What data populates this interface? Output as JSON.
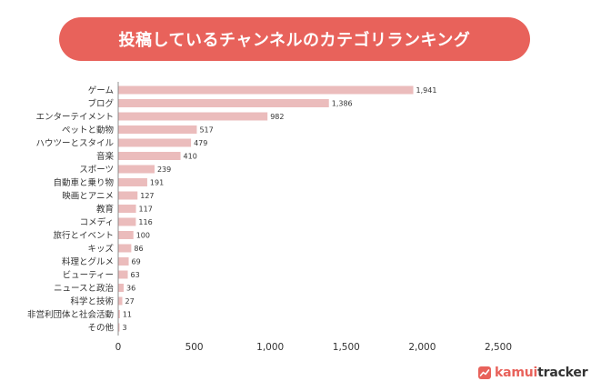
{
  "title": "投稿しているチャンネルのカテゴリランキング",
  "brand": {
    "part_a": "kamui",
    "part_b": "tracker",
    "color": "#e8625b"
  },
  "colors": {
    "bar": "#ebbcbc",
    "title_bg": "#e8625b",
    "text": "#333333",
    "axis": "#777777"
  },
  "chart_data": {
    "type": "bar",
    "orientation": "horizontal",
    "categories": [
      "ゲーム",
      "ブログ",
      "エンターテイメント",
      "ペットと動物",
      "ハウツーとスタイル",
      "音楽",
      "スポーツ",
      "自動車と乗り物",
      "映画とアニメ",
      "教育",
      "コメディ",
      "旅行とイベント",
      "キッズ",
      "料理とグルメ",
      "ビューティー",
      "ニュースと政治",
      "科学と技術",
      "非営利団体と社会活動",
      "その他"
    ],
    "values": [
      1941,
      1386,
      982,
      517,
      479,
      410,
      239,
      191,
      127,
      117,
      116,
      100,
      86,
      69,
      63,
      36,
      27,
      11,
      3
    ],
    "value_labels": [
      "1,941",
      "1,386",
      "982",
      "517",
      "479",
      "410",
      "239",
      "191",
      "127",
      "117",
      "116",
      "100",
      "86",
      "69",
      "63",
      "36",
      "27",
      "11",
      "3"
    ],
    "x_ticks": [
      0,
      500,
      1000,
      1500,
      2000,
      2500
    ],
    "x_tick_labels": [
      "0",
      "500",
      "1,000",
      "1,500",
      "2,000",
      "2,500"
    ],
    "xlim": [
      0,
      2500
    ],
    "grid": false,
    "legend": "none"
  }
}
